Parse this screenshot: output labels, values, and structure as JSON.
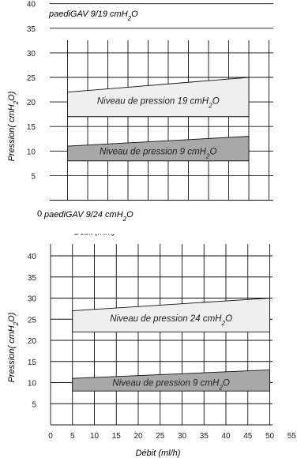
{
  "charts": [
    {
      "title": "paediGAV 9/19 cmH₂O",
      "ylabel": "Pression( cmH₂O)",
      "xlabel": "Débit (ml/h)",
      "yticks": [
        "5",
        "10",
        "15",
        "20",
        "25",
        "30",
        "35",
        "40"
      ],
      "corner_label": "0"
    },
    {
      "title": "paediGAV 9/24 cmH₂O",
      "ylabel": "Pression( cmH₂O)",
      "xlabel": "Débit (ml/h)",
      "yticks": [
        "5",
        "10",
        "15",
        "20",
        "25",
        "30",
        "35",
        "40"
      ],
      "xticks": [
        "0",
        "5",
        "10",
        "15",
        "20",
        "25",
        "30",
        "35",
        "40",
        "45",
        "50",
        "55"
      ]
    }
  ],
  "chart_data": [
    {
      "type": "area",
      "title": "paediGAV 9/19 cmH₂O",
      "ylabel": "Pression( cmH₂O)",
      "xlabel": "Débit (ml/h)",
      "xlim": [
        0,
        55
      ],
      "ylim": [
        0,
        42
      ],
      "grid": true,
      "series": [
        {
          "name": "Niveau de pression 19 cmH₂O",
          "color": "#efefef",
          "x": [
            5,
            50
          ],
          "upper": [
            22,
            25
          ],
          "lower": [
            17,
            17
          ]
        },
        {
          "name": "Niveau de pression 9 cmH₂O",
          "color": "#a8a8a8",
          "x": [
            5,
            50
          ],
          "upper": [
            11,
            13
          ],
          "lower": [
            8,
            8
          ]
        }
      ]
    },
    {
      "type": "area",
      "title": "paediGAV 9/24 cmH₂O",
      "ylabel": "Pression( cmH₂O)",
      "xlabel": "Débit (ml/h)",
      "xlim": [
        0,
        55
      ],
      "ylim": [
        0,
        42
      ],
      "grid": true,
      "series": [
        {
          "name": "Niveau de pression 24 cmH₂O",
          "color": "#efefef",
          "x": [
            5,
            50
          ],
          "upper": [
            27,
            30
          ],
          "lower": [
            22,
            22
          ]
        },
        {
          "name": "Niveau de pression 9 cmH₂O",
          "color": "#a8a8a8",
          "x": [
            5,
            50
          ],
          "upper": [
            11,
            13
          ],
          "lower": [
            8,
            8
          ]
        }
      ]
    }
  ]
}
